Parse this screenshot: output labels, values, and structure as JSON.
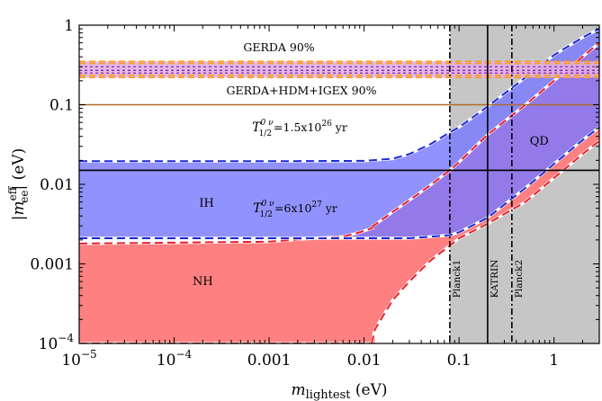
{
  "chart_data": {
    "type": "area",
    "xlabel": {
      "main": "m",
      "sub": "lightest",
      "unit": "(eV)"
    },
    "ylabel": {
      "main": "|m",
      "sub": "ee",
      "sup": "eff",
      "unit": "| (eV)"
    },
    "xscale": "log",
    "yscale": "log",
    "xlim": [
      1e-05,
      3
    ],
    "ylim": [
      0.0001,
      1
    ],
    "xticks": [
      {
        "value": 1e-05,
        "label_base": "10",
        "label_exp": "−5"
      },
      {
        "value": 0.0001,
        "label_base": "10",
        "label_exp": "−4"
      },
      {
        "value": 0.001,
        "label": "0.001"
      },
      {
        "value": 0.01,
        "label": "0.01"
      },
      {
        "value": 0.1,
        "label": "0.1"
      },
      {
        "value": 1,
        "label": "1"
      }
    ],
    "yticks": [
      {
        "value": 0.0001,
        "label_base": "10",
        "label_exp": "−4"
      },
      {
        "value": 0.001,
        "label": "0.001"
      },
      {
        "value": 0.01,
        "label": "0.01"
      },
      {
        "value": 0.1,
        "label": "0.1"
      },
      {
        "value": 1,
        "label": "1"
      }
    ],
    "bands": [
      {
        "name": "NH",
        "color": "#ff8080",
        "edge_color": "#e8202a",
        "x": [
          1e-05,
          0.001,
          0.003,
          0.006,
          0.008,
          0.01,
          0.013
        ],
        "upper": [
          0.0018,
          0.0019,
          0.0021,
          0.0022,
          0.0024,
          0.0026,
          0.0029
        ],
        "lower": [
          0.0001,
          0.0001,
          0.0001,
          0.0001,
          0.0001,
          0.0001,
          0.0001
        ]
      },
      {
        "name": "NH",
        "color": "#ff8080",
        "edge_color": "#e8202a",
        "x": [
          0.012,
          0.013,
          0.015,
          0.02,
          0.03,
          0.05,
          0.08,
          0.1,
          0.2,
          0.5,
          1,
          2,
          3
        ],
        "upper": [
          0.0029,
          0.0031,
          0.0035,
          0.0045,
          0.0063,
          0.0098,
          0.015,
          0.019,
          0.042,
          0.1,
          0.2,
          0.4,
          0.6
        ],
        "lower": [
          0.0001,
          0.00015,
          0.0002,
          0.00035,
          0.0006,
          0.0011,
          0.0017,
          0.0021,
          0.0032,
          0.006,
          0.012,
          0.024,
          0.035
        ]
      },
      {
        "name": "IH",
        "color": "#7a7aff",
        "edge_color": "#1a2ad8",
        "x": [
          1e-05,
          0.001,
          0.01,
          0.02,
          0.03,
          0.05,
          0.08,
          0.1,
          0.2,
          0.5,
          1,
          2,
          3
        ],
        "upper": [
          0.0195,
          0.0195,
          0.0197,
          0.021,
          0.024,
          0.032,
          0.045,
          0.052,
          0.095,
          0.22,
          0.42,
          0.7,
          0.9
        ],
        "lower": [
          0.0021,
          0.0021,
          0.0021,
          0.0021,
          0.0021,
          0.0022,
          0.0023,
          0.0025,
          0.0038,
          0.009,
          0.018,
          0.036,
          0.052
        ]
      }
    ],
    "region_labels": [
      {
        "text": "NH",
        "x": 0.0002,
        "y": 0.0006
      },
      {
        "text": "IH",
        "x": 0.00022,
        "y": 0.0058
      },
      {
        "text": "QD",
        "x": 0.7,
        "y": 0.035
      }
    ],
    "limits": {
      "planck_shade": {
        "x_from": 0.08,
        "x_to": 3,
        "color": "#c6c6c6"
      },
      "vertical_lines": [
        {
          "label": "Planck1",
          "x": 0.08,
          "style": "dashdot"
        },
        {
          "label": "KATRIN",
          "x": 0.2,
          "style": "solid"
        },
        {
          "label": "Planck2",
          "x": 0.36,
          "style": "dashdot"
        }
      ],
      "gerda_band": {
        "label": "GERDA 90%",
        "y_from": 0.22,
        "y_to": 0.35,
        "fill": "#ddb3e3",
        "edge_color": "#ff9a1e",
        "line_color": "#9a1fae"
      },
      "hdm_line": {
        "label": "GERDA+HDM+IGEX 90%",
        "y": 0.1,
        "color": "#b06a2a"
      },
      "t_lines": [
        {
          "label_prefix": "T",
          "label_sub": "1/2",
          "label_sup": "0 ν",
          "label_value": "=1.5x10",
          "label_value_sup": "26",
          "label_unit": " yr",
          "y": 0.1
        },
        {
          "label_prefix": "T",
          "label_sub": "1/2",
          "label_sup": "0 ν",
          "label_value": "=6x10",
          "label_value_sup": "27",
          "label_unit": " yr",
          "y": 0.015
        }
      ]
    }
  }
}
